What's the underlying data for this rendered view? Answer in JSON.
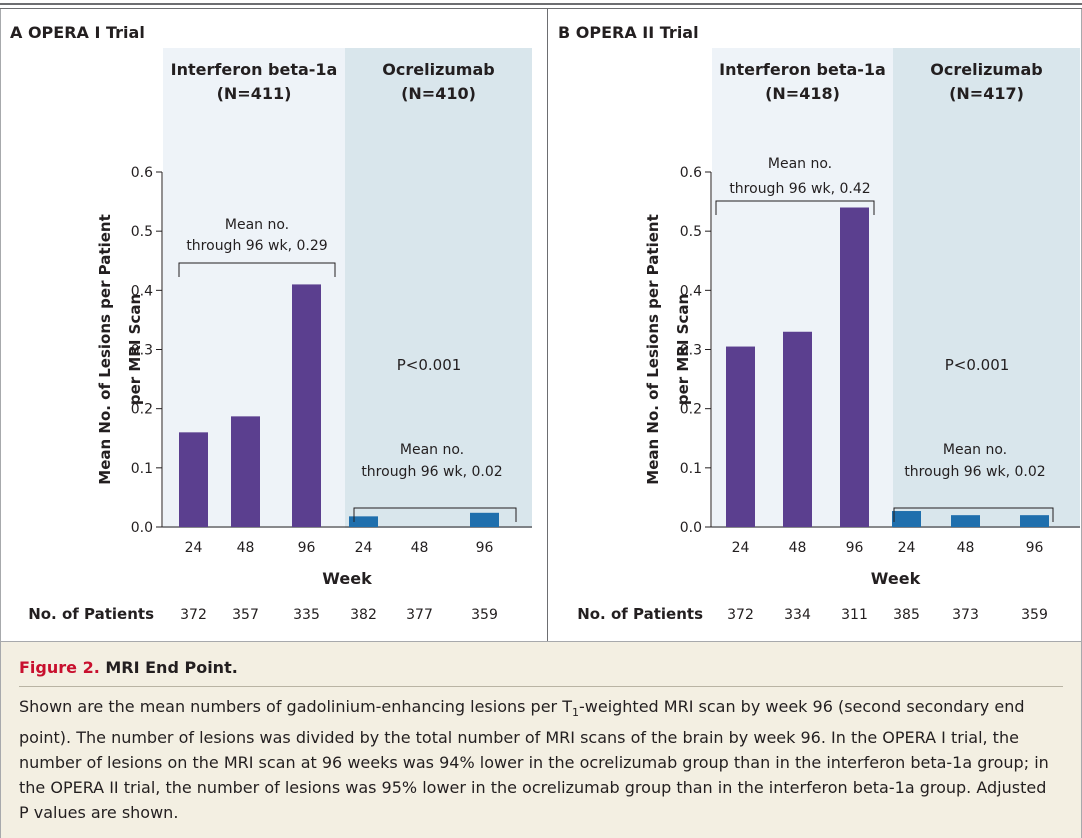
{
  "chart_data": [
    {
      "type": "bar",
      "panel_letter": "A",
      "title": "OPERA I Trial",
      "xlabel": "Week",
      "ylabel_line1": "Mean No. of Lesions per Patient",
      "ylabel_line2": "per MRI Scan",
      "ylim": [
        0,
        0.6
      ],
      "yticks": [
        "0.0",
        "0.1",
        "0.2",
        "0.3",
        "0.4",
        "0.5",
        "0.6"
      ],
      "groups": [
        {
          "name_line1": "Interferon beta-1a",
          "name_line2": "(N=411)",
          "color": "#5b3f8f",
          "weeks": [
            "24",
            "48",
            "96"
          ],
          "values": [
            0.16,
            0.187,
            0.41
          ],
          "mean_line1": "Mean no.",
          "mean_line2": "through 96 wk, 0.29"
        },
        {
          "name_line1": "Ocrelizumab",
          "name_line2": "(N=410)",
          "color": "#1f6fad",
          "weeks": [
            "24",
            "48",
            "96"
          ],
          "values": [
            0.018,
            0.0,
            0.024
          ],
          "mean_line1": "Mean no.",
          "mean_line2": "through 96 wk, 0.02"
        }
      ],
      "p_value": "P<0.001",
      "patients_label": "No. of Patients",
      "patients": [
        "372",
        "357",
        "335",
        "382",
        "377",
        "359"
      ]
    },
    {
      "type": "bar",
      "panel_letter": "B",
      "title": "OPERA II Trial",
      "xlabel": "Week",
      "ylabel_line1": "Mean No. of Lesions per Patient",
      "ylabel_line2": "per MRI Scan",
      "ylim": [
        0,
        0.6
      ],
      "yticks": [
        "0.0",
        "0.1",
        "0.2",
        "0.3",
        "0.4",
        "0.5",
        "0.6"
      ],
      "groups": [
        {
          "name_line1": "Interferon beta-1a",
          "name_line2": "(N=418)",
          "color": "#5b3f8f",
          "weeks": [
            "24",
            "48",
            "96"
          ],
          "values": [
            0.305,
            0.33,
            0.54
          ],
          "mean_line1": "Mean no.",
          "mean_line2": "through 96 wk, 0.42"
        },
        {
          "name_line1": "Ocrelizumab",
          "name_line2": "(N=417)",
          "color": "#1f6fad",
          "weeks": [
            "24",
            "48",
            "96"
          ],
          "values": [
            0.027,
            0.02,
            0.02
          ],
          "mean_line1": "Mean no.",
          "mean_line2": "through 96 wk, 0.02"
        }
      ],
      "p_value": "P<0.001",
      "patients_label": "No. of Patients",
      "patients": [
        "372",
        "334",
        "311",
        "385",
        "373",
        "359"
      ]
    }
  ],
  "caption": {
    "fig_num": "Figure 2.",
    "fig_name": "MRI End Point.",
    "text_before_sub": "Shown are the mean numbers of gadolinium-enhancing lesions per T",
    "sub": "1",
    "text_after_sub": "-weighted MRI scan by week 96 (second sec­ondary end point). The number of lesions was divided by the total number of MRI scans of the brain by week 96. In the OPERA I trial, the number of lesions on the MRI scan at 96 weeks was 94% lower in the ocrelizumab group than in the interferon beta-1a group; in the OPERA II trial, the number of lesions was 95% lower in the ocrelizumab group than in the interferon beta-1a group. Adjusted P values are shown."
  },
  "colors": {
    "interferon_band": "#eef3f8",
    "ocrelizumab_band": "#d9e6ec",
    "interferon_bar": "#5b3f8f",
    "ocrelizumab_bar": "#1f6fad",
    "caption_bg": "#f3efe2",
    "figure_number": "#c8102e"
  }
}
